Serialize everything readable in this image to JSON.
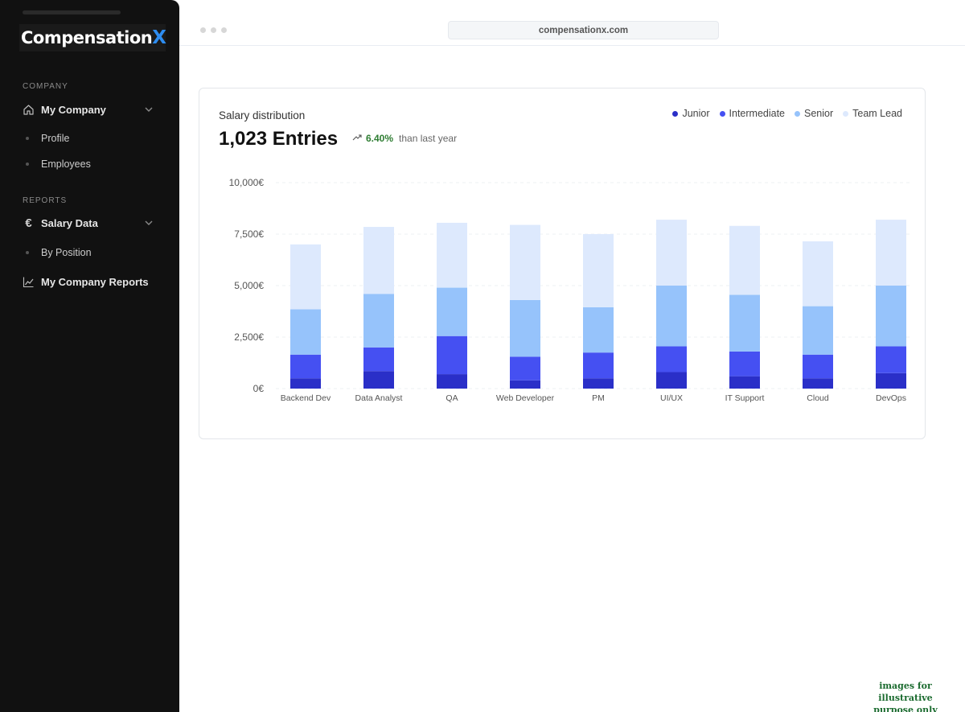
{
  "sidebar": {
    "logo": {
      "text": "Compensation",
      "accent": "X"
    },
    "sections": [
      {
        "label": "COMPANY"
      },
      {
        "label": "REPORTS"
      }
    ],
    "items": {
      "my_company": "My Company",
      "profile": "Profile",
      "employees": "Employees",
      "salary_data": "Salary Data",
      "by_position": "By Position",
      "reports": "My Company Reports"
    }
  },
  "browser": {
    "url": "compensationx.com"
  },
  "card": {
    "title": "Salary distribution",
    "entries": "1,023 Entries",
    "trend_pct": "6.40%",
    "trend_note": "than last year"
  },
  "colors": {
    "junior": "#2a2fc8",
    "intermediate": "#4550f2",
    "senior": "#96c3fb",
    "team_lead": "#dde9fd",
    "trend_green": "#2e7d32"
  },
  "chart_data": {
    "type": "bar",
    "stacked": true,
    "categories": [
      "Backend Dev",
      "Data Analyst",
      "QA",
      "Web Developer",
      "PM",
      "UI/UX",
      "IT Support",
      "Cloud",
      "DevOps"
    ],
    "series": [
      {
        "name": "Junior",
        "values": [
          500,
          850,
          700,
          400,
          500,
          800,
          600,
          500,
          750
        ]
      },
      {
        "name": "Intermediate",
        "values": [
          1150,
          1150,
          1850,
          1150,
          1250,
          1250,
          1200,
          1150,
          1300
        ]
      },
      {
        "name": "Senior",
        "values": [
          2200,
          2600,
          2350,
          2750,
          2200,
          2950,
          2750,
          2350,
          2950
        ]
      },
      {
        "name": "Team Lead",
        "values": [
          3150,
          3250,
          3150,
          3650,
          3550,
          3200,
          3350,
          3150,
          3200
        ]
      }
    ],
    "y_ticks": [
      "10,000€",
      "7,500€",
      "5,000€",
      "2,500€",
      "0€"
    ],
    "ylim": [
      0,
      10000
    ],
    "grid": true,
    "legend_position": "top-right"
  }
}
